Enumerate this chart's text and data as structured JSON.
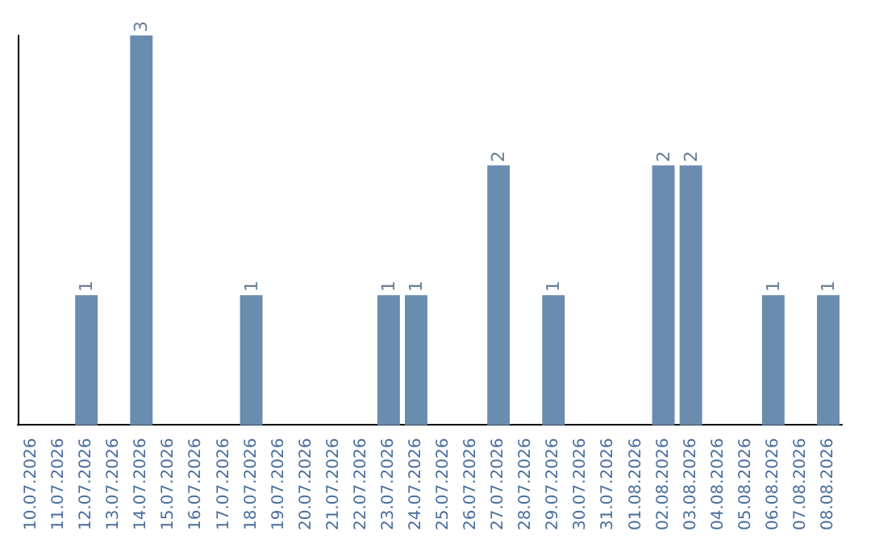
{
  "chart_data": {
    "type": "bar",
    "categories": [
      "10.07.2026",
      "11.07.2026",
      "12.07.2026",
      "13.07.2026",
      "14.07.2026",
      "15.07.2026",
      "16.07.2026",
      "17.07.2026",
      "18.07.2026",
      "19.07.2026",
      "20.07.2026",
      "21.07.2026",
      "22.07.2026",
      "23.07.2026",
      "24.07.2026",
      "25.07.2026",
      "26.07.2026",
      "27.07.2026",
      "28.07.2026",
      "29.07.2026",
      "30.07.2026",
      "31.07.2026",
      "01.08.2026",
      "02.08.2026",
      "03.08.2026",
      "04.08.2026",
      "05.08.2026",
      "06.08.2026",
      "07.08.2026",
      "08.08.2026"
    ],
    "values": [
      0,
      0,
      1,
      0,
      3,
      0,
      0,
      0,
      1,
      0,
      0,
      0,
      0,
      1,
      1,
      0,
      0,
      2,
      0,
      1,
      0,
      0,
      0,
      2,
      2,
      0,
      0,
      1,
      0,
      1
    ],
    "value_labels": [
      null,
      null,
      "1",
      null,
      "3",
      null,
      null,
      null,
      "1",
      null,
      null,
      null,
      null,
      "1",
      "1",
      null,
      null,
      "2",
      null,
      "1",
      null,
      null,
      null,
      "2",
      "2",
      null,
      null,
      "1",
      null,
      "1"
    ],
    "color": "#6a8caf",
    "grid": false
  }
}
